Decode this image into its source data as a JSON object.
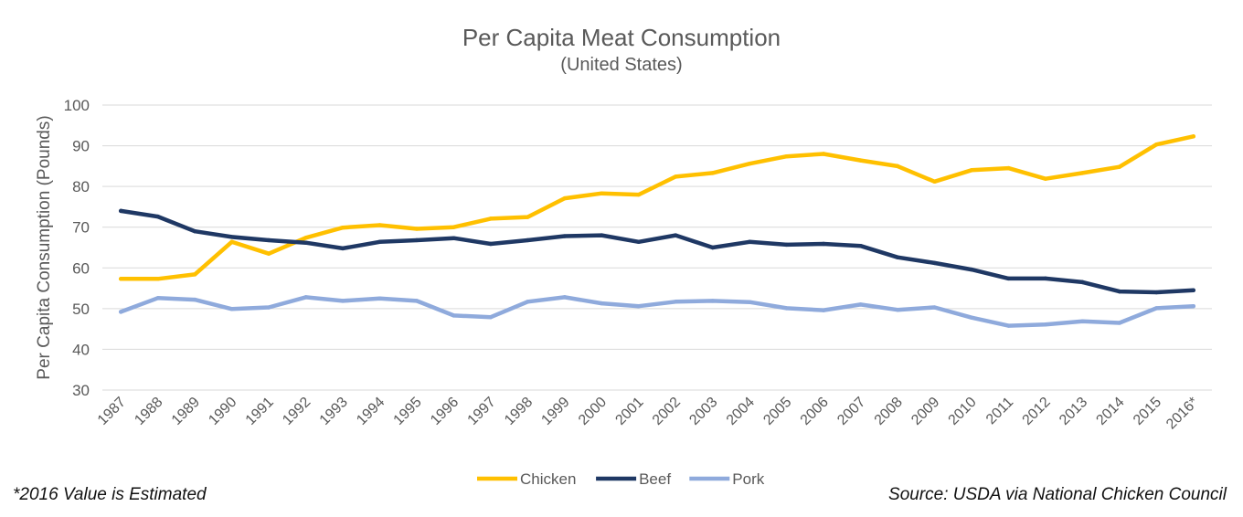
{
  "chart_data": {
    "type": "line",
    "title": "Per Capita Meat Consumption",
    "subtitle": "(United States)",
    "ylabel": "Per Capita Consumption (Pounds)",
    "xlabel": "",
    "ylim": [
      30,
      100
    ],
    "yticks": [
      30,
      40,
      50,
      60,
      70,
      80,
      90,
      100
    ],
    "grid": true,
    "legend": "bottom",
    "categories": [
      "1987",
      "1988",
      "1989",
      "1990",
      "1991",
      "1992",
      "1993",
      "1994",
      "1995",
      "1996",
      "1997",
      "1998",
      "1999",
      "2000",
      "2001",
      "2002",
      "2003",
      "2004",
      "2005",
      "2006",
      "2007",
      "2008",
      "2009",
      "2010",
      "2011",
      "2012",
      "2013",
      "2014",
      "2015",
      "2016*"
    ],
    "series": [
      {
        "name": "Chicken",
        "color": "#FFC000",
        "values": [
          57.3,
          57.3,
          58.4,
          66.4,
          63.5,
          67.4,
          69.9,
          70.5,
          69.6,
          70.0,
          72.1,
          72.5,
          77.1,
          78.3,
          78.0,
          82.4,
          83.3,
          85.6,
          87.4,
          88.0,
          86.4,
          85.0,
          81.2,
          84.0,
          84.5,
          81.9,
          83.3,
          84.8,
          90.3,
          92.3
        ]
      },
      {
        "name": "Beef",
        "color": "#1F3864",
        "values": [
          74.0,
          72.6,
          69.0,
          67.6,
          66.8,
          66.2,
          64.8,
          66.4,
          66.8,
          67.3,
          65.9,
          66.8,
          67.8,
          68.0,
          66.4,
          68.0,
          65.0,
          66.4,
          65.7,
          65.9,
          65.4,
          62.6,
          61.2,
          59.6,
          57.4,
          57.4,
          56.5,
          54.2,
          54.0,
          54.5
        ]
      },
      {
        "name": "Pork",
        "color": "#8FAADC",
        "values": [
          49.2,
          52.6,
          52.2,
          49.9,
          50.3,
          52.8,
          51.9,
          52.5,
          51.9,
          48.3,
          47.9,
          51.7,
          52.8,
          51.3,
          50.6,
          51.7,
          51.9,
          51.6,
          50.1,
          49.6,
          51.0,
          49.7,
          50.3,
          47.8,
          45.8,
          46.1,
          46.9,
          46.5,
          50.1,
          50.6
        ]
      }
    ]
  },
  "footnote_left": "*2016 Value is Estimated",
  "footnote_right": "Source: USDA via National Chicken Council"
}
